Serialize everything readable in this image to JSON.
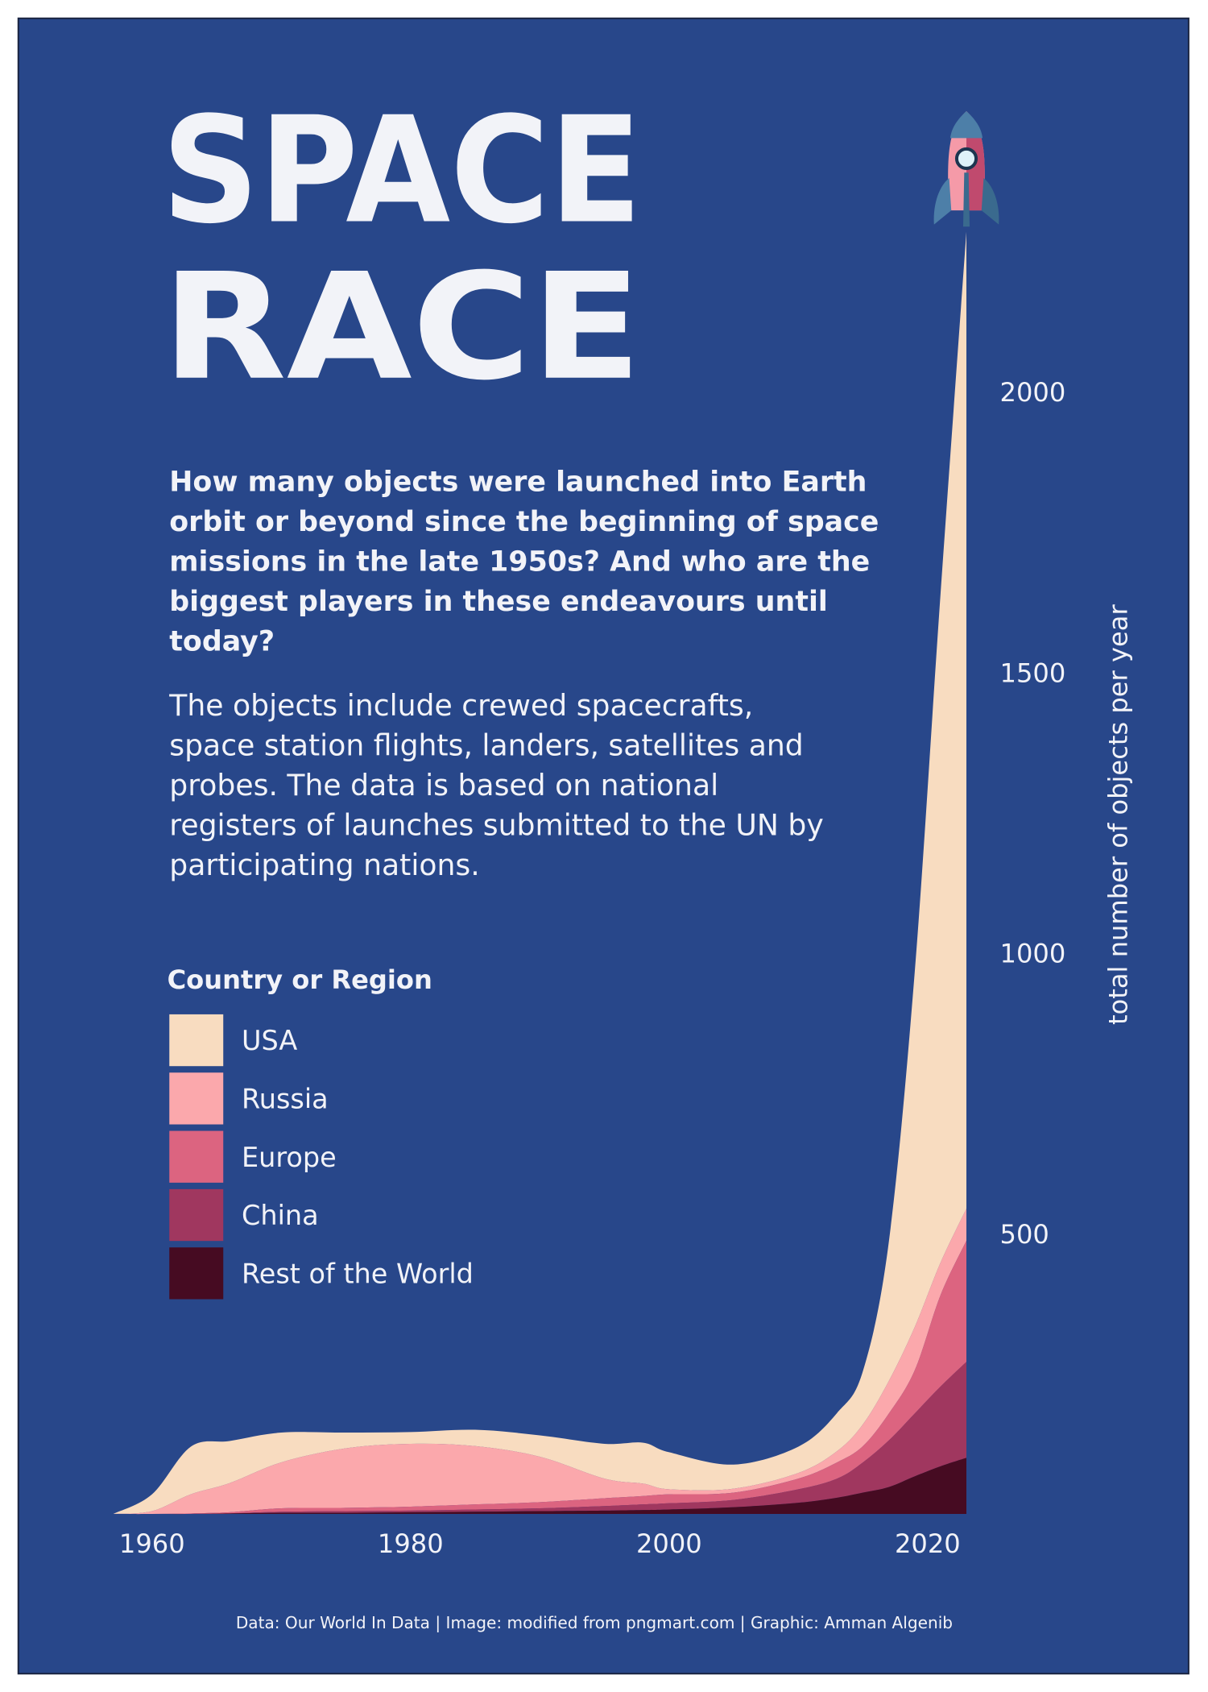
{
  "chart_data": {
    "type": "stacked-area",
    "title_lines": [
      "SPACE",
      "RACE"
    ],
    "subtitle_lines": [
      "How many objects were launched into Earth",
      "orbit or beyond since the beginning of space",
      "missions in the late 1950s? And who are the",
      "biggest players in these endeavours until",
      "today?"
    ],
    "description_lines": [
      "The objects include crewed spacecrafts,",
      "space station flights, landers, satellites and",
      "probes. The data is based on national",
      "registers of launches submitted to the UN by",
      "participating nations."
    ],
    "legend_title": "Country or Region",
    "y_label": "total number of objects per year",
    "source": "Data: Our World In Data | Image: modified from pngmart.com | Graphic: Amman Algenib",
    "x": [
      1957,
      1960,
      1963,
      1966,
      1970,
      1975,
      1980,
      1985,
      1990,
      1995,
      1998,
      2000,
      2005,
      2010,
      2013,
      2015,
      2017,
      2019,
      2021,
      2023
    ],
    "xlim": [
      1957,
      2023
    ],
    "xticks": [
      1960,
      1980,
      2000,
      2020
    ],
    "ylim": [
      0,
      2300
    ],
    "yticks": [
      500,
      1000,
      1500,
      2000
    ],
    "series": [
      {
        "name": "Rest of the World",
        "color": "#460b22",
        "values": [
          0,
          0,
          0,
          1,
          2,
          2,
          3,
          4,
          5,
          6,
          7,
          8,
          12,
          20,
          29,
          38,
          48,
          67,
          85,
          100
        ]
      },
      {
        "name": "China",
        "color": "#a0375f",
        "values": [
          0,
          0,
          0,
          0,
          2,
          3,
          3,
          4,
          5,
          8,
          10,
          11,
          13,
          24,
          34,
          54,
          83,
          112,
          142,
          171
        ]
      },
      {
        "name": "Europe",
        "color": "#dc6480",
        "values": [
          0,
          0,
          1,
          2,
          6,
          6,
          7,
          9,
          11,
          14,
          15,
          16,
          13,
          19,
          29,
          29,
          48,
          77,
          163,
          216
        ]
      },
      {
        "name": "Russia",
        "color": "#fba8ac",
        "values": [
          0,
          5,
          34,
          52,
          82,
          106,
          112,
          104,
          81,
          35,
          22,
          9,
          7,
          10,
          20,
          39,
          58,
          77,
          58,
          57
        ]
      },
      {
        "name": "USA",
        "color": "#f8dcc0",
        "values": [
          0,
          30,
          85,
          75,
          53,
          28,
          21,
          29,
          38,
          62,
          73,
          66,
          43,
          47,
          68,
          95,
          248,
          632,
          1192,
          1741
        ]
      }
    ]
  }
}
